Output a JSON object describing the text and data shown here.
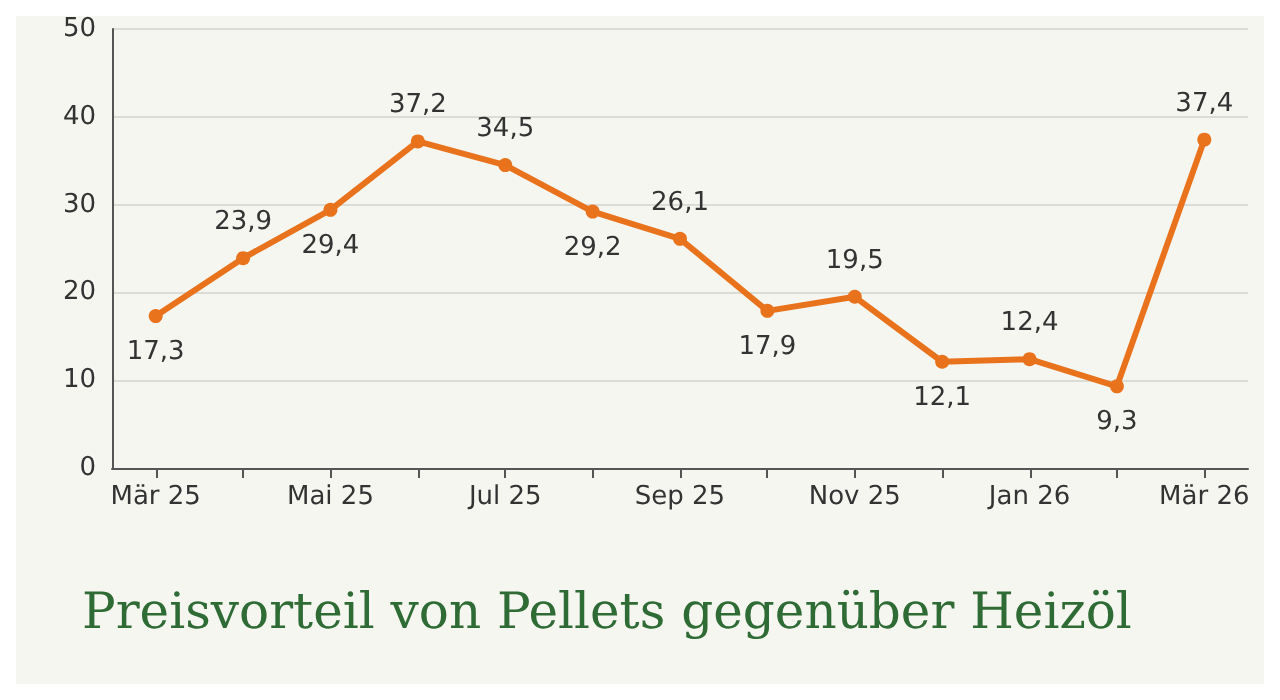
{
  "chart_data": {
    "type": "line",
    "title": "Preisvorteil von Pellets gegenüber Heizöl",
    "categories": [
      "Mär 25",
      null,
      "Mai 25",
      null,
      "Jul 25",
      null,
      "Sep 25",
      null,
      "Nov 25",
      null,
      "Jan 26",
      null,
      "Mär 26"
    ],
    "series": [
      {
        "color": "#e8731c",
        "values": [
          17.3,
          23.9,
          29.4,
          37.2,
          34.5,
          29.2,
          26.1,
          17.9,
          19.5,
          12.1,
          12.4,
          9.3,
          37.4
        ],
        "value_labels": [
          "17,3",
          "23,9",
          "29,4",
          "37,2",
          "34,5",
          "29,2",
          "26,1",
          "17,9",
          "19,5",
          "12,1",
          "12,4",
          "9,3",
          "37,4"
        ]
      }
    ],
    "ylim": [
      0,
      50
    ],
    "yticks": [
      0,
      10,
      20,
      30,
      40,
      50
    ],
    "grid": "y",
    "marker": "circle",
    "line_style": "solid"
  }
}
